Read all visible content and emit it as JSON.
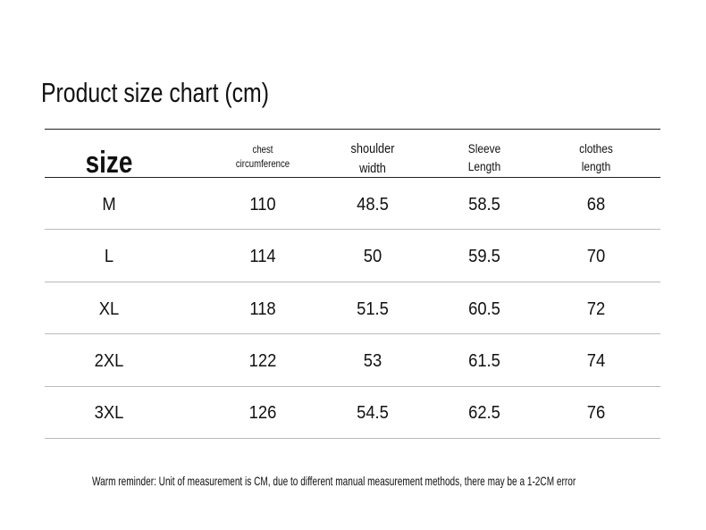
{
  "title": "Product size chart (cm)",
  "headers": {
    "size": "size",
    "chest": [
      "chest",
      "circumference"
    ],
    "shoulder": [
      "shoulder",
      "width"
    ],
    "sleeve": [
      "Sleeve",
      "Length"
    ],
    "clothes": [
      "clothes",
      "length"
    ]
  },
  "rows": [
    [
      "M",
      "110",
      "48.5",
      "58.5",
      "68"
    ],
    [
      "L",
      "114",
      "50",
      "59.5",
      "70"
    ],
    [
      "XL",
      "118",
      "51.5",
      "60.5",
      "72"
    ],
    [
      "2XL",
      "122",
      "53",
      "61.5",
      "74"
    ],
    [
      "3XL",
      "126",
      "54.5",
      "62.5",
      "76"
    ]
  ],
  "note": "Warm reminder: Unit of measurement is CM, due to different manual measurement methods, there may be a 1-2CM error"
}
